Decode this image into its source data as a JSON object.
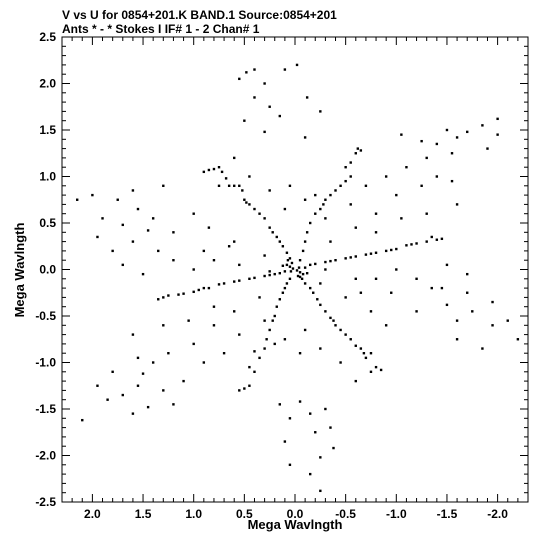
{
  "header": {
    "line1": "V vs U for 0854+201.K BAND.1   Source:0854+201",
    "line2": "Ants * - *    Stokes I  IF# 1 - 2  Chan# 1"
  },
  "chart_data": {
    "type": "scatter",
    "title": "V vs U for 0854+201.K BAND.1   Source:0854+201",
    "subtitle": "Ants * - *    Stokes I  IF# 1 - 2  Chan# 1",
    "xlabel": "Mega Wavlngth",
    "ylabel": "Mega Wavlngth",
    "xlim": [
      2.3,
      -2.3
    ],
    "ylim": [
      -2.5,
      2.5
    ],
    "x_reversed": true,
    "x_ticks": [
      2.0,
      1.5,
      1.0,
      0.5,
      0.0,
      -0.5,
      -1.0,
      -1.5,
      -2.0
    ],
    "x_tick_labels": [
      "2.0",
      "1.5",
      "1.0",
      "0.5",
      "0.0",
      "-0.5",
      "-1.0",
      "-1.5",
      "-2.0"
    ],
    "y_ticks": [
      2.5,
      2.0,
      1.5,
      1.0,
      0.5,
      0.0,
      -0.5,
      -1.0,
      -1.5,
      -2.0,
      -2.5
    ],
    "y_tick_labels": [
      "2.5",
      "2.0",
      "1.5",
      "1.0",
      "0.5",
      "0.0",
      "-0.5",
      "-1.0",
      "-1.5",
      "-2.0",
      "-2.5"
    ],
    "grid": false,
    "marker_color": "#000000",
    "series": [
      {
        "points": [
          [
            0.02,
            0.01
          ],
          [
            -0.02,
            -0.01
          ],
          [
            0.05,
            0.03
          ],
          [
            -0.05,
            -0.03
          ],
          [
            0.04,
            -0.02
          ],
          [
            -0.04,
            0.02
          ],
          [
            0.08,
            0.05
          ],
          [
            -0.08,
            -0.05
          ],
          [
            0.03,
            0.07
          ],
          [
            -0.03,
            -0.07
          ],
          [
            0.1,
            -0.02
          ],
          [
            -0.1,
            0.02
          ],
          [
            0.07,
            0.1
          ],
          [
            -0.07,
            -0.1
          ],
          [
            0.12,
            0.04
          ],
          [
            -0.12,
            -0.04
          ],
          [
            0.4,
            2.15
          ],
          [
            0.48,
            2.12
          ],
          [
            -0.02,
            2.2
          ],
          [
            0.1,
            2.15
          ],
          [
            0.55,
            2.05
          ],
          [
            0.3,
            2.0
          ],
          [
            -0.12,
            1.85
          ],
          [
            0.4,
            1.85
          ],
          [
            0.25,
            1.75
          ],
          [
            -0.25,
            1.7
          ],
          [
            0.5,
            1.6
          ],
          [
            0.15,
            1.65
          ],
          [
            0.3,
            1.48
          ],
          [
            -0.1,
            1.42
          ],
          [
            -0.15,
            -2.2
          ],
          [
            0.05,
            -2.1
          ],
          [
            -0.25,
            -2.02
          ],
          [
            -0.38,
            -1.92
          ],
          [
            0.1,
            -1.85
          ],
          [
            -0.2,
            -1.75
          ],
          [
            -0.35,
            -1.7
          ],
          [
            0.05,
            -1.6
          ],
          [
            -0.15,
            -1.55
          ],
          [
            -0.3,
            -1.5
          ],
          [
            0.15,
            -1.45
          ],
          [
            -0.05,
            -1.42
          ],
          [
            -0.25,
            -2.38
          ],
          [
            -2.0,
            1.62
          ],
          [
            -1.5,
            1.5
          ],
          [
            -1.7,
            1.48
          ],
          [
            -1.05,
            1.45
          ],
          [
            -1.25,
            1.38
          ],
          [
            -1.4,
            1.35
          ],
          [
            -1.6,
            1.42
          ],
          [
            -1.85,
            1.55
          ],
          [
            -2.0,
            1.45
          ],
          [
            -1.3,
            1.2
          ],
          [
            -1.1,
            1.1
          ],
          [
            -1.55,
            1.25
          ],
          [
            -1.9,
            1.3
          ],
          [
            2.1,
            -1.62
          ],
          [
            1.85,
            -1.4
          ],
          [
            1.6,
            -1.55
          ],
          [
            1.45,
            -1.48
          ],
          [
            1.2,
            -1.45
          ],
          [
            1.7,
            -1.35
          ],
          [
            1.95,
            -1.25
          ],
          [
            1.55,
            -1.25
          ],
          [
            1.3,
            -1.3
          ],
          [
            1.1,
            -1.2
          ],
          [
            1.8,
            -1.1
          ],
          [
            1.5,
            -1.12
          ],
          [
            2.15,
            0.75
          ],
          [
            2.0,
            0.8
          ],
          [
            1.75,
            0.75
          ],
          [
            1.55,
            0.65
          ],
          [
            1.9,
            0.55
          ],
          [
            1.7,
            0.48
          ],
          [
            1.4,
            0.55
          ],
          [
            1.95,
            0.35
          ],
          [
            1.6,
            0.3
          ],
          [
            1.8,
            0.2
          ],
          [
            1.45,
            0.42
          ],
          [
            1.6,
            0.85
          ],
          [
            1.3,
            0.9
          ],
          [
            -2.1,
            -0.55
          ],
          [
            -2.2,
            -0.75
          ],
          [
            -1.95,
            -0.6
          ],
          [
            -1.75,
            -0.45
          ],
          [
            -1.6,
            -0.55
          ],
          [
            -1.95,
            -0.35
          ],
          [
            -1.7,
            -0.25
          ],
          [
            -1.5,
            -0.38
          ],
          [
            -1.45,
            -0.2
          ],
          [
            -1.85,
            -0.85
          ],
          [
            -1.6,
            -0.75
          ],
          [
            0.9,
            1.05
          ],
          [
            0.85,
            1.07
          ],
          [
            0.8,
            1.08
          ],
          [
            0.75,
            1.1
          ],
          [
            0.72,
            1.05
          ],
          [
            0.68,
            0.98
          ],
          [
            0.65,
            0.9
          ],
          [
            0.6,
            0.9
          ],
          [
            0.55,
            0.9
          ],
          [
            0.52,
            0.85
          ],
          [
            0.5,
            0.75
          ],
          [
            0.48,
            0.72
          ],
          [
            0.45,
            0.7
          ],
          [
            0.4,
            0.65
          ],
          [
            0.35,
            0.6
          ],
          [
            0.3,
            0.55
          ],
          [
            0.25,
            0.45
          ],
          [
            0.22,
            0.4
          ],
          [
            0.18,
            0.35
          ],
          [
            0.15,
            0.3
          ],
          [
            0.12,
            0.25
          ],
          [
            0.08,
            0.18
          ],
          [
            0.05,
            0.12
          ],
          [
            -0.2,
            0.6
          ],
          [
            -0.25,
            0.65
          ],
          [
            -0.28,
            0.7
          ],
          [
            -0.3,
            0.75
          ],
          [
            -0.35,
            0.8
          ],
          [
            -0.4,
            0.85
          ],
          [
            -0.45,
            0.9
          ],
          [
            -0.5,
            0.95
          ],
          [
            -0.55,
            1.0
          ],
          [
            -0.5,
            1.1
          ],
          [
            -0.55,
            1.15
          ],
          [
            -0.6,
            1.25
          ],
          [
            -0.65,
            1.28
          ],
          [
            -0.62,
            1.3
          ],
          [
            -0.15,
            0.5
          ],
          [
            -0.12,
            0.4
          ],
          [
            -0.1,
            0.3
          ],
          [
            -0.08,
            0.2
          ],
          [
            -0.05,
            0.1
          ],
          [
            -1.45,
            0.33
          ],
          [
            -1.4,
            0.32
          ],
          [
            -1.35,
            0.35
          ],
          [
            -1.3,
            0.3
          ],
          [
            -1.2,
            0.28
          ],
          [
            -1.15,
            0.27
          ],
          [
            -1.1,
            0.26
          ],
          [
            -1.0,
            0.22
          ],
          [
            -0.95,
            0.21
          ],
          [
            -0.9,
            0.2
          ],
          [
            -0.8,
            0.18
          ],
          [
            -0.75,
            0.17
          ],
          [
            -0.7,
            0.16
          ],
          [
            -0.6,
            0.14
          ],
          [
            -0.55,
            0.13
          ],
          [
            -0.5,
            0.12
          ],
          [
            -0.4,
            0.1
          ],
          [
            -0.35,
            0.09
          ],
          [
            -0.3,
            0.08
          ],
          [
            -0.2,
            0.06
          ],
          [
            -0.15,
            0.05
          ],
          [
            1.35,
            -0.32
          ],
          [
            1.3,
            -0.3
          ],
          [
            1.25,
            -0.28
          ],
          [
            1.15,
            -0.27
          ],
          [
            1.1,
            -0.26
          ],
          [
            1.0,
            -0.24
          ],
          [
            0.95,
            -0.22
          ],
          [
            0.9,
            -0.2
          ],
          [
            0.85,
            -0.2
          ],
          [
            0.75,
            -0.16
          ],
          [
            0.7,
            -0.15
          ],
          [
            0.6,
            -0.13
          ],
          [
            0.55,
            -0.12
          ],
          [
            0.45,
            -0.1
          ],
          [
            0.4,
            -0.09
          ],
          [
            0.3,
            -0.07
          ],
          [
            0.25,
            -0.06
          ],
          [
            0.2,
            -0.05
          ],
          [
            0.15,
            -0.04
          ],
          [
            0.55,
            -1.3
          ],
          [
            0.5,
            -1.28
          ],
          [
            0.45,
            -1.25
          ],
          [
            0.4,
            -1.1
          ],
          [
            0.45,
            -1.05
          ],
          [
            0.35,
            -0.95
          ],
          [
            0.4,
            -0.88
          ],
          [
            0.3,
            -0.85
          ],
          [
            0.28,
            -0.75
          ],
          [
            0.25,
            -0.65
          ],
          [
            0.22,
            -0.55
          ],
          [
            0.2,
            -0.5
          ],
          [
            0.18,
            -0.4
          ],
          [
            0.15,
            -0.32
          ],
          [
            0.12,
            -0.25
          ],
          [
            0.1,
            -0.2
          ],
          [
            0.08,
            -0.15
          ],
          [
            0.05,
            -0.1
          ],
          [
            -0.8,
            -1.05
          ],
          [
            -0.85,
            -1.08
          ],
          [
            -0.75,
            -1.1
          ],
          [
            -0.7,
            -0.95
          ],
          [
            -0.68,
            -0.9
          ],
          [
            -0.65,
            -0.85
          ],
          [
            -0.6,
            -0.82
          ],
          [
            -0.55,
            -0.75
          ],
          [
            -0.5,
            -0.7
          ],
          [
            -0.45,
            -0.65
          ],
          [
            -0.4,
            -0.6
          ],
          [
            -0.38,
            -0.55
          ],
          [
            -0.35,
            -0.52
          ],
          [
            -0.3,
            -0.45
          ],
          [
            -0.25,
            -0.38
          ],
          [
            -0.22,
            -0.32
          ],
          [
            -0.18,
            -0.25
          ],
          [
            -0.15,
            -0.2
          ],
          [
            -0.1,
            -0.15
          ],
          [
            -0.05,
            -0.08
          ],
          [
            1.0,
            0.6
          ],
          [
            0.85,
            0.45
          ],
          [
            0.6,
            0.3
          ],
          [
            0.3,
            0.15
          ],
          [
            1.2,
            0.4
          ],
          [
            0.9,
            0.2
          ],
          [
            0.55,
            0.05
          ],
          [
            0.25,
            -0.02
          ],
          [
            -0.9,
            -0.6
          ],
          [
            -0.75,
            -0.45
          ],
          [
            -0.5,
            -0.3
          ],
          [
            -0.25,
            -0.15
          ],
          [
            -1.2,
            -0.45
          ],
          [
            -0.95,
            -0.25
          ],
          [
            -0.6,
            -0.1
          ],
          [
            -0.3,
            0.0
          ],
          [
            0.75,
            0.9
          ],
          [
            0.6,
            1.2
          ],
          [
            0.45,
            1.0
          ],
          [
            0.25,
            0.85
          ],
          [
            0.1,
            0.65
          ],
          [
            0.05,
            0.9
          ],
          [
            -0.1,
            0.75
          ],
          [
            -0.75,
            -0.9
          ],
          [
            -0.6,
            -1.2
          ],
          [
            -0.45,
            -1.0
          ],
          [
            -0.25,
            -0.85
          ],
          [
            -0.1,
            -0.65
          ],
          [
            -0.05,
            -0.9
          ],
          [
            0.1,
            -0.75
          ],
          [
            1.0,
            -0.8
          ],
          [
            0.8,
            -0.6
          ],
          [
            0.6,
            -0.45
          ],
          [
            0.35,
            -0.3
          ],
          [
            0.9,
            -1.0
          ],
          [
            0.7,
            -0.9
          ],
          [
            0.55,
            -0.7
          ],
          [
            0.3,
            -0.55
          ],
          [
            0.2,
            -0.8
          ],
          [
            -1.0,
            0.8
          ],
          [
            -0.8,
            0.6
          ],
          [
            -0.6,
            0.45
          ],
          [
            -0.35,
            0.3
          ],
          [
            -0.9,
            1.0
          ],
          [
            -0.7,
            0.9
          ],
          [
            -0.55,
            0.7
          ],
          [
            -0.3,
            0.55
          ],
          [
            -0.2,
            0.8
          ],
          [
            1.6,
            -0.7
          ],
          [
            1.3,
            -0.6
          ],
          [
            1.05,
            -0.55
          ],
          [
            0.8,
            -0.4
          ],
          [
            1.55,
            -0.95
          ],
          [
            1.25,
            -0.9
          ],
          [
            1.4,
            -1.0
          ],
          [
            -1.6,
            0.7
          ],
          [
            -1.3,
            0.6
          ],
          [
            -1.05,
            0.55
          ],
          [
            -0.8,
            0.4
          ],
          [
            -1.55,
            0.95
          ],
          [
            -1.25,
            0.9
          ],
          [
            -1.4,
            1.0
          ],
          [
            1.7,
            0.05
          ],
          [
            1.5,
            -0.05
          ],
          [
            1.2,
            0.1
          ],
          [
            1.0,
            0.0
          ],
          [
            0.8,
            0.1
          ],
          [
            0.65,
            0.25
          ],
          [
            1.35,
            0.2
          ],
          [
            -1.7,
            -0.05
          ],
          [
            -1.5,
            0.05
          ],
          [
            -1.2,
            -0.1
          ],
          [
            -1.0,
            0.0
          ],
          [
            -0.8,
            -0.1
          ],
          [
            -0.65,
            -0.25
          ],
          [
            -1.35,
            -0.2
          ]
        ]
      }
    ]
  }
}
